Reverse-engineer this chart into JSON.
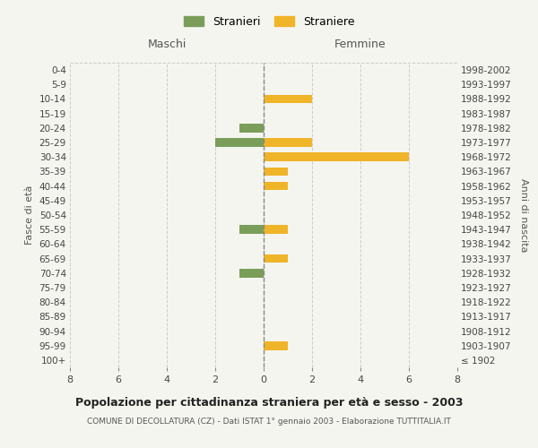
{
  "age_groups": [
    "100+",
    "95-99",
    "90-94",
    "85-89",
    "80-84",
    "75-79",
    "70-74",
    "65-69",
    "60-64",
    "55-59",
    "50-54",
    "45-49",
    "40-44",
    "35-39",
    "30-34",
    "25-29",
    "20-24",
    "15-19",
    "10-14",
    "5-9",
    "0-4"
  ],
  "birth_years": [
    "≤ 1902",
    "1903-1907",
    "1908-1912",
    "1913-1917",
    "1918-1922",
    "1923-1927",
    "1928-1932",
    "1933-1937",
    "1938-1942",
    "1943-1947",
    "1948-1952",
    "1953-1957",
    "1958-1962",
    "1963-1967",
    "1968-1972",
    "1973-1977",
    "1978-1982",
    "1983-1987",
    "1988-1992",
    "1993-1997",
    "1998-2002"
  ],
  "maschi": [
    0,
    0,
    0,
    0,
    0,
    0,
    1,
    0,
    0,
    1,
    0,
    0,
    0,
    0,
    0,
    2,
    1,
    0,
    0,
    0,
    0
  ],
  "femmine": [
    0,
    1,
    0,
    0,
    0,
    0,
    0,
    1,
    0,
    1,
    0,
    0,
    1,
    1,
    6,
    2,
    0,
    0,
    2,
    0,
    0
  ],
  "color_maschi": "#7a9e5a",
  "color_femmine": "#f0b429",
  "background_color": "#f5f5f0",
  "grid_color": "#cccccc",
  "title": "Popolazione per cittadinanza straniera per età e sesso - 2003",
  "subtitle": "COMUNE DI DECOLLATURA (CZ) - Dati ISTAT 1° gennaio 2003 - Elaborazione TUTTITALIA.IT",
  "xlabel_left": "Maschi",
  "xlabel_right": "Femmine",
  "ylabel_left": "Fasce di età",
  "ylabel_right": "Anni di nascita",
  "legend_stranieri": "Stranieri",
  "legend_straniere": "Straniere",
  "xlim": 8
}
